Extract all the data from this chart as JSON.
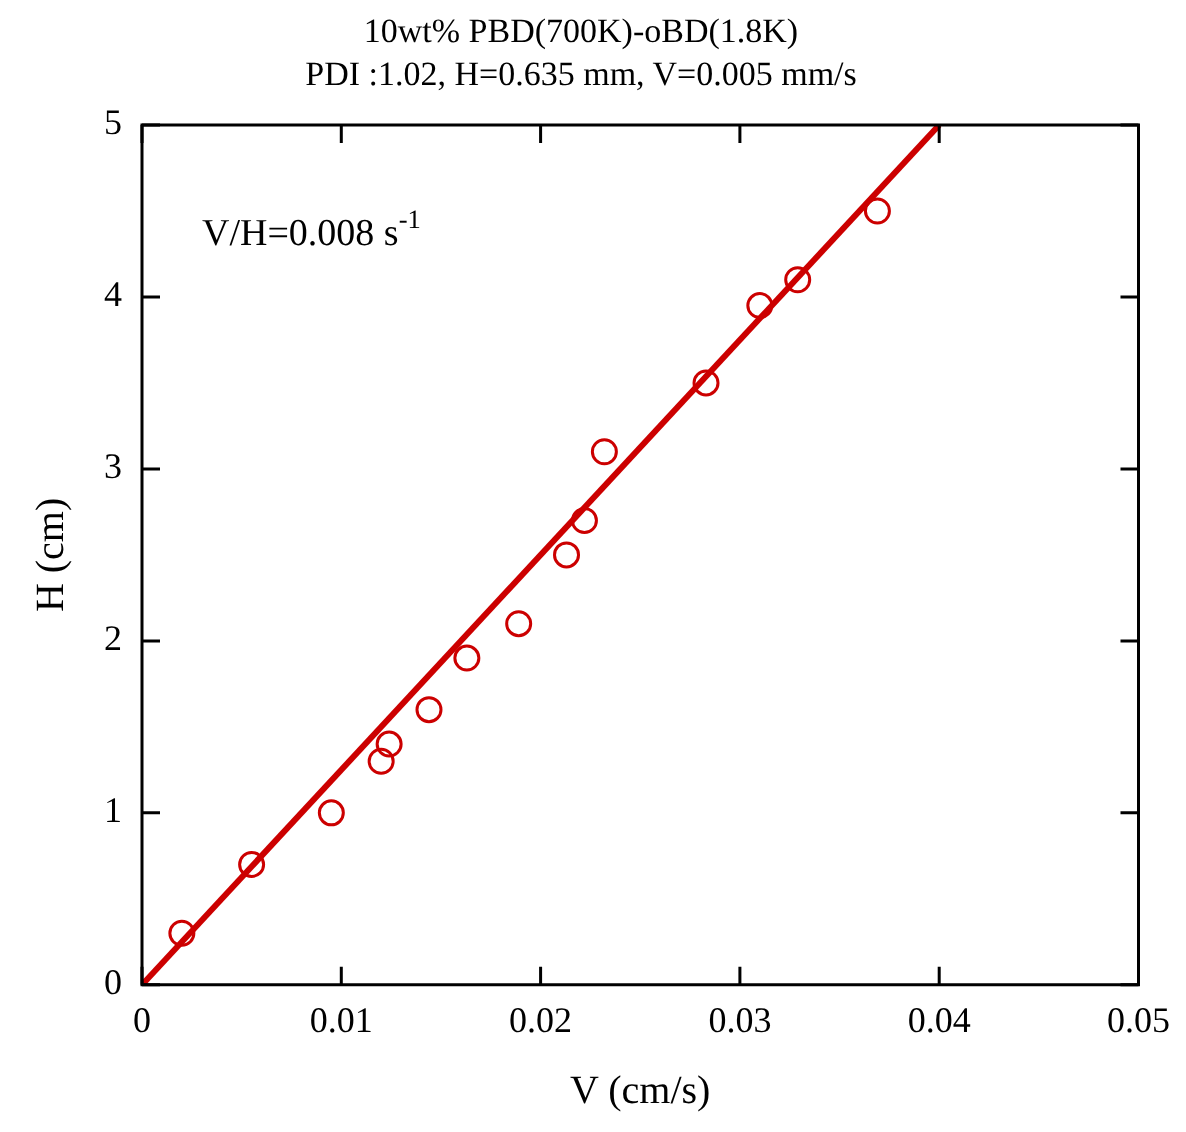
{
  "chart_data": {
    "type": "scatter",
    "title": "10wt% PBD(700K)-oBD(1.8K)",
    "subtitle": "PDI :1.02, H=0.635 mm, V=0.005 mm/s",
    "xlabel": "V (cm/s)",
    "ylabel": "H (cm)",
    "xlim": [
      0,
      0.05
    ],
    "xticks": [
      0,
      0.01,
      0.02,
      0.03,
      0.04,
      0.05
    ],
    "ylim": [
      0,
      5
    ],
    "yticks": [
      0,
      1,
      2,
      3,
      4,
      5
    ],
    "grid": false,
    "legend": false,
    "marker": "circle",
    "annotations": [
      "V/H=0.008 s$^{-1}$"
    ],
    "series": [
      {
        "color": "#cc0000",
        "x": [
          0.002,
          0.0055,
          0.0095,
          0.012,
          0.0124,
          0.0144,
          0.0163,
          0.0189,
          0.0213,
          0.0222,
          0.0232,
          0.0283,
          0.031,
          0.0329,
          0.0369
        ],
        "values": [
          0.3,
          0.7,
          1.0,
          1.3,
          1.4,
          1.6,
          1.9,
          2.1,
          2.5,
          2.7,
          3.1,
          3.5,
          3.95,
          4.1,
          4.5
        ]
      },
      {
        "type": "line",
        "color": "#cc0000",
        "marker": "none",
        "line_style": "solid",
        "x": [
          0,
          0.04
        ],
        "values": [
          0,
          5
        ]
      }
    ]
  }
}
